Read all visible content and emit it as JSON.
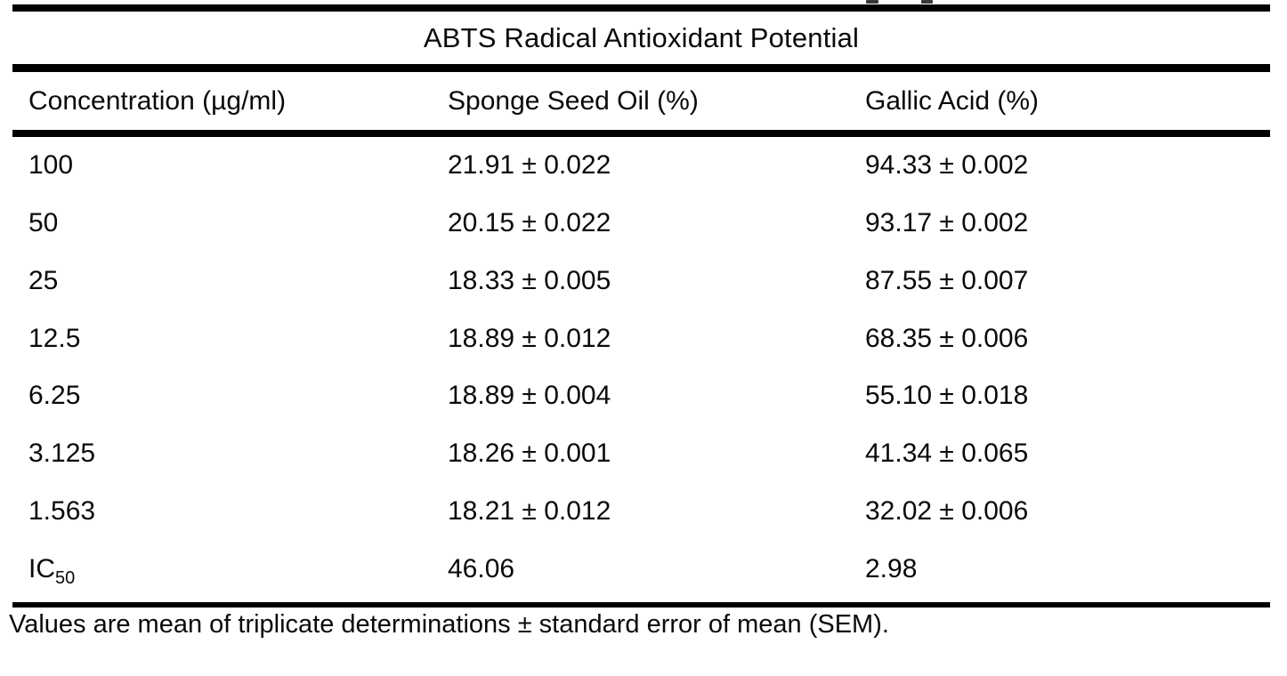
{
  "page": {
    "background_color": "#ffffff",
    "text_color": "#0a0a0a",
    "rule_color": "#000000"
  },
  "table": {
    "title": "ABTS Radical Antioxidant Potential",
    "columns": {
      "concentration": "Concentration (µg/ml)",
      "sponge_seed_oil": "Sponge Seed Oil (%)",
      "gallic_acid": "Gallic Acid (%)"
    },
    "rows": [
      {
        "conc_main": "100",
        "conc_sub": "",
        "sponge_seed_oil": "21.91 ± 0.022",
        "gallic_acid": "94.33 ± 0.002"
      },
      {
        "conc_main": "50",
        "conc_sub": "",
        "sponge_seed_oil": "20.15 ± 0.022",
        "gallic_acid": "93.17 ± 0.002"
      },
      {
        "conc_main": "25",
        "conc_sub": "",
        "sponge_seed_oil": "18.33 ± 0.005",
        "gallic_acid": "87.55 ± 0.007"
      },
      {
        "conc_main": "12.5",
        "conc_sub": "",
        "sponge_seed_oil": "18.89 ± 0.012",
        "gallic_acid": "68.35 ± 0.006"
      },
      {
        "conc_main": "6.25",
        "conc_sub": "",
        "sponge_seed_oil": "18.89 ± 0.004",
        "gallic_acid": "55.10 ± 0.018"
      },
      {
        "conc_main": "3.125",
        "conc_sub": "",
        "sponge_seed_oil": "18.26 ± 0.001",
        "gallic_acid": "41.34 ± 0.065"
      },
      {
        "conc_main": "1.563",
        "conc_sub": "",
        "sponge_seed_oil": "18.21 ± 0.012",
        "gallic_acid": "32.02 ± 0.006"
      },
      {
        "conc_main": "IC",
        "conc_sub": "50",
        "sponge_seed_oil": "46.06",
        "gallic_acid": "2.98"
      }
    ],
    "footnote": "Values are mean of triplicate determinations ± standard error of mean (SEM)."
  }
}
